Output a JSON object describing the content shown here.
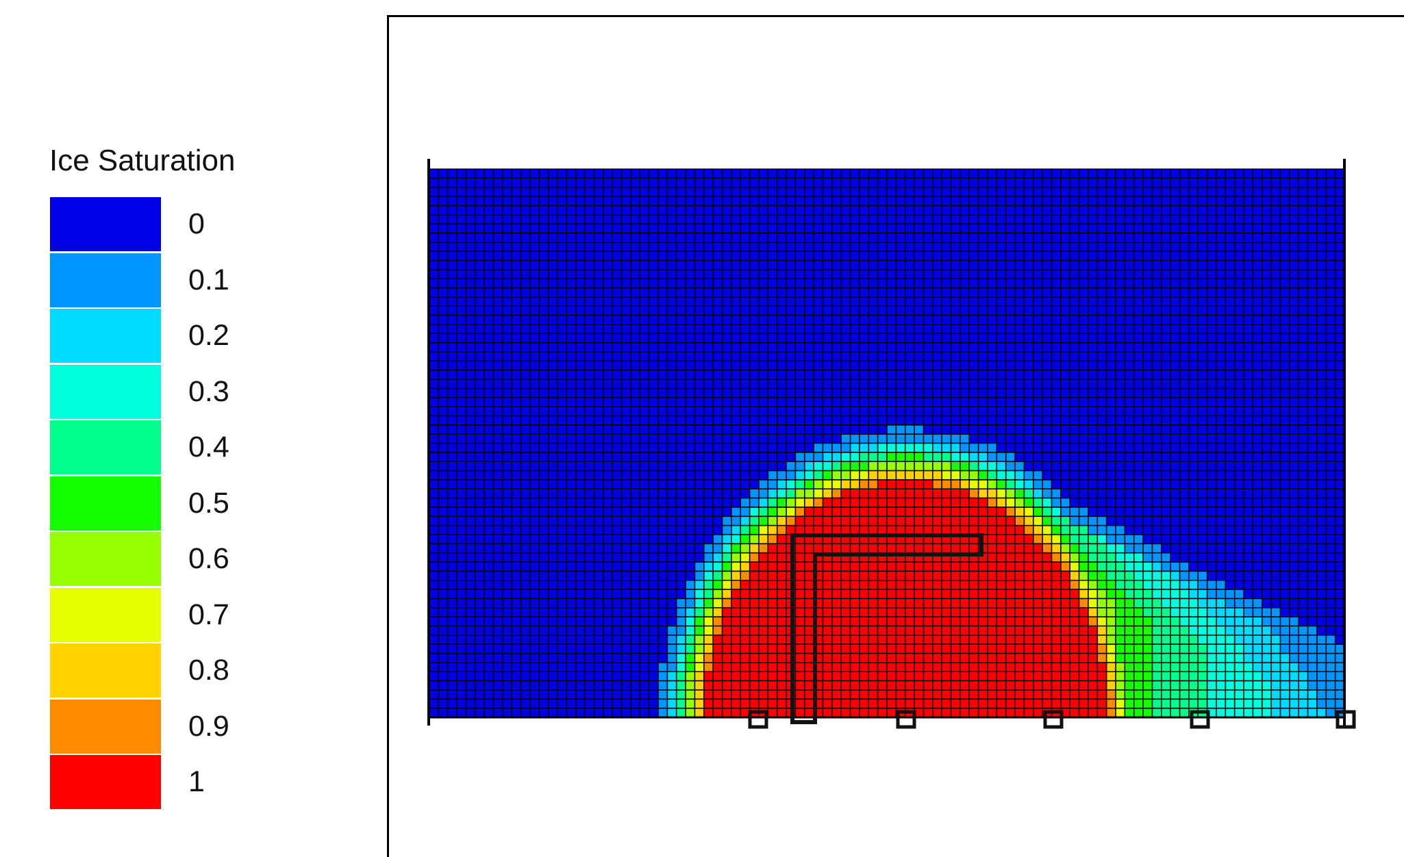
{
  "chart_data": {
    "type": "heatmap",
    "title": "",
    "variable": "Ice Saturation",
    "legend": {
      "title": "Ice Saturation",
      "placement": "left",
      "entries": [
        {
          "value": "0",
          "color": "#0000e6"
        },
        {
          "value": "0.1",
          "color": "#0096ff"
        },
        {
          "value": "0.2",
          "color": "#00dcff"
        },
        {
          "value": "0.3",
          "color": "#00ffdc"
        },
        {
          "value": "0.4",
          "color": "#00ff8c"
        },
        {
          "value": "0.5",
          "color": "#14ff00"
        },
        {
          "value": "0.6",
          "color": "#96ff00"
        },
        {
          "value": "0.7",
          "color": "#e6ff00"
        },
        {
          "value": "0.8",
          "color": "#ffd200"
        },
        {
          "value": "0.9",
          "color": "#ff8c00"
        },
        {
          "value": "1",
          "color": "#ff0000"
        }
      ]
    },
    "field": {
      "description_grid": "uniform rectangular mesh",
      "range": [
        0,
        1
      ],
      "frozen_zone": "saturation 1 around the L-shaped pipe, fringe decreasing through 0.9-0.1, background 0"
    },
    "grid": true
  }
}
